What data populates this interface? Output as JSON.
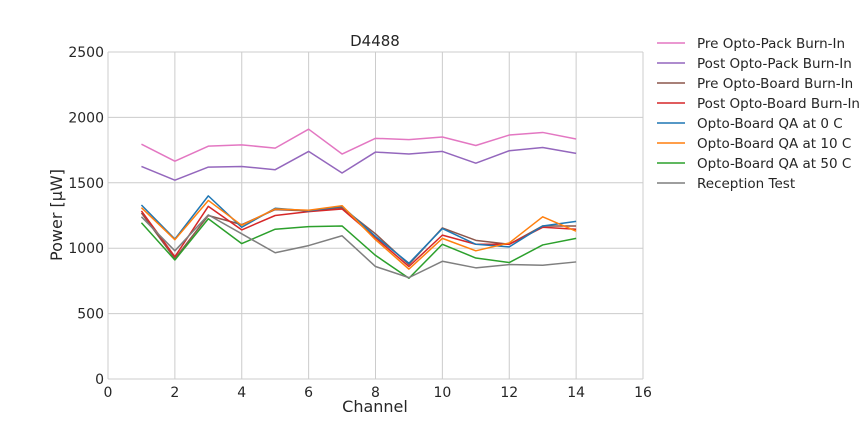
{
  "chart_data": {
    "type": "line",
    "title": "D4488",
    "xlabel": "Channel",
    "ylabel": "Power [μW]",
    "xlim": [
      0,
      16
    ],
    "ylim": [
      0,
      2500
    ],
    "xticks": [
      0,
      2,
      4,
      6,
      8,
      10,
      12,
      14,
      16
    ],
    "yticks": [
      0,
      500,
      1000,
      1500,
      2000,
      2500
    ],
    "grid": true,
    "legend_position": "outside-right",
    "x": [
      1,
      2,
      3,
      4,
      5,
      6,
      7,
      8,
      9,
      10,
      11,
      12,
      13,
      14
    ],
    "series": [
      {
        "name": "Pre Opto-Pack Burn-In",
        "color": "#e377c2",
        "values": [
          1795,
          1665,
          1780,
          1790,
          1765,
          1910,
          1720,
          1840,
          1830,
          1850,
          1785,
          1865,
          1885,
          1835
        ]
      },
      {
        "name": "Post Opto-Pack Burn-In",
        "color": "#9467bd",
        "values": [
          1625,
          1520,
          1620,
          1625,
          1600,
          1740,
          1575,
          1735,
          1720,
          1740,
          1650,
          1745,
          1770,
          1725
        ]
      },
      {
        "name": "Pre Opto-Board Burn-In",
        "color": "#8c564b",
        "values": [
          1270,
          920,
          1250,
          1180,
          1295,
          1285,
          1310,
          1110,
          875,
          1155,
          1060,
          1030,
          1170,
          1170
        ]
      },
      {
        "name": "Post Opto-Board Burn-In",
        "color": "#d62728",
        "values": [
          1285,
          935,
          1320,
          1140,
          1250,
          1280,
          1300,
          1080,
          860,
          1100,
          1030,
          1030,
          1160,
          1145
        ]
      },
      {
        "name": "Opto-Board QA at 0 C",
        "color": "#1f77b4",
        "values": [
          1330,
          1070,
          1400,
          1160,
          1305,
          1285,
          1320,
          1090,
          885,
          1150,
          1030,
          1010,
          1170,
          1205
        ]
      },
      {
        "name": "Opto-Board QA at 10 C",
        "color": "#ff7f0e",
        "values": [
          1310,
          1065,
          1365,
          1175,
          1300,
          1290,
          1325,
          1065,
          840,
          1075,
          980,
          1040,
          1240,
          1130
        ]
      },
      {
        "name": "Opto-Board QA at 50 C",
        "color": "#2ca02c",
        "values": [
          1195,
          910,
          1225,
          1035,
          1145,
          1165,
          1170,
          945,
          770,
          1030,
          925,
          890,
          1025,
          1075
        ]
      },
      {
        "name": "Reception Test",
        "color": "#7f7f7f",
        "values": [
          1240,
          980,
          1255,
          1110,
          965,
          1020,
          1095,
          860,
          775,
          900,
          850,
          875,
          870,
          895
        ]
      }
    ]
  }
}
